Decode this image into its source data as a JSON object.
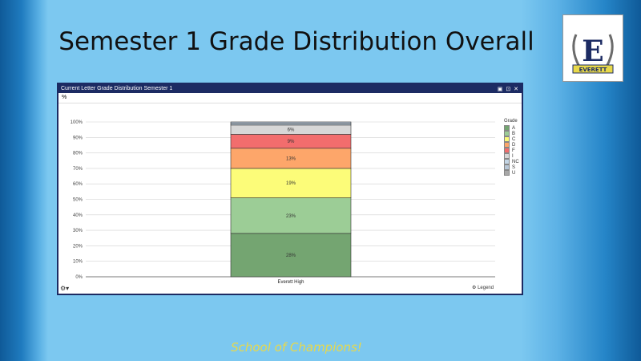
{
  "slide": {
    "title": "Semester 1 Grade Distribution Overall",
    "footer": "School of Champions!"
  },
  "logo": {
    "text": "EVERETT",
    "letter": "E"
  },
  "panel": {
    "title": "Current Letter Grade Distribution Semester 1",
    "unit_label": "%",
    "right_label": "Legend"
  },
  "chart_data": {
    "type": "bar",
    "stacked": true,
    "categories": [
      "Everett High"
    ],
    "ylim": [
      0,
      100
    ],
    "yticks": [
      0,
      10,
      20,
      30,
      40,
      50,
      60,
      70,
      80,
      90,
      100
    ],
    "ytick_labels": [
      "0%",
      "10%",
      "20%",
      "30%",
      "40%",
      "50%",
      "60%",
      "70%",
      "80%",
      "90%",
      "100%"
    ],
    "legend_title": "Grade",
    "legend_position": "right",
    "grid": true,
    "series": [
      {
        "name": "A",
        "values": [
          28
        ],
        "label": "28%",
        "color": "#74a571"
      },
      {
        "name": "B",
        "values": [
          23
        ],
        "label": "23%",
        "color": "#9ccd96"
      },
      {
        "name": "C",
        "values": [
          19
        ],
        "label": "19%",
        "color": "#fcfc79"
      },
      {
        "name": "D",
        "values": [
          13
        ],
        "label": "13%",
        "color": "#fda66a"
      },
      {
        "name": "F",
        "values": [
          9
        ],
        "label": "9%",
        "color": "#f26d6d"
      },
      {
        "name": "I",
        "values": [
          6
        ],
        "label": "6%",
        "color": "#d7d7d7"
      },
      {
        "name": "NC",
        "values": [
          1
        ],
        "label": "",
        "color": "#c4d6e6"
      },
      {
        "name": "S",
        "values": [
          1
        ],
        "label": "",
        "color": "#b8c8d8"
      },
      {
        "name": "U",
        "values": [
          0
        ],
        "label": "",
        "color": "#a8a8a8"
      }
    ]
  }
}
